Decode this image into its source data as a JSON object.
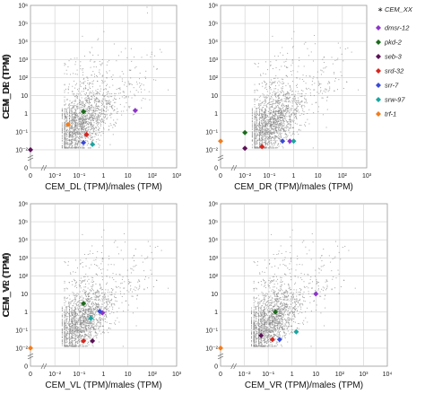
{
  "legend": {
    "placement": "right",
    "background_label": "CEM_XX",
    "background_color": "#888888",
    "entries": [
      {
        "name": "dmsr-12",
        "color": "#8e35c9"
      },
      {
        "name": "pkd-2",
        "color": "#1b6b1b"
      },
      {
        "name": "seb-3",
        "color": "#5c1257"
      },
      {
        "name": "srd-32",
        "color": "#d7261e"
      },
      {
        "name": "srr-7",
        "color": "#3a4bd6"
      },
      {
        "name": "srw-97",
        "color": "#1aa6a2"
      },
      {
        "name": "trf-1",
        "color": "#f07d1e"
      }
    ]
  },
  "chart_data": [
    {
      "type": "scatter",
      "title": "",
      "xlabel": "CEM_DL (TPM)/males (TPM)",
      "ylabel": "CEM_DL (TPM)",
      "xscale": "log",
      "yscale": "log",
      "xlim": [
        0.01,
        1000
      ],
      "ylim": [
        0.01,
        1000000
      ],
      "x_ticks": [
        "0",
        "10⁻²",
        "10⁻¹",
        "1",
        "10",
        "10²",
        "10³"
      ],
      "y_ticks": [
        "0",
        "10⁻²",
        "10⁻¹",
        "1",
        "10",
        "10²",
        "10³",
        "10⁴",
        "10⁵",
        "10⁶"
      ],
      "grid": true,
      "background": {
        "name": "CEM_XX",
        "note": "several thousand grey gene points, densest near x 0.05-1, y 0.05-5"
      },
      "series": [
        {
          "name": "dmsr-12",
          "x": 20,
          "y": 1.5
        },
        {
          "name": "pkd-2",
          "x": 0.15,
          "y": 1.3
        },
        {
          "name": "seb-3",
          "x": 0,
          "y": 0.01
        },
        {
          "name": "srd-32",
          "x": 0.2,
          "y": 0.07
        },
        {
          "name": "srr-7",
          "x": 0.15,
          "y": 0.025
        },
        {
          "name": "srw-97",
          "x": 0.35,
          "y": 0.02
        },
        {
          "name": "trf-1",
          "x": 0.035,
          "y": 0.25
        }
      ]
    },
    {
      "type": "scatter",
      "title": "",
      "xlabel": "CEM_DR (TPM)/males (TPM)",
      "ylabel": "CEM_DR (TPM)",
      "xscale": "log",
      "yscale": "log",
      "xlim": [
        0.01,
        1000
      ],
      "ylim": [
        0.01,
        1000000
      ],
      "x_ticks": [
        "0",
        "10⁻²",
        "10⁻¹",
        "1",
        "10",
        "10²",
        "10³"
      ],
      "y_ticks": [
        "0",
        "10⁻²",
        "10⁻¹",
        "1",
        "10",
        "10²",
        "10³",
        "10⁴",
        "10⁵",
        "10⁶"
      ],
      "grid": true,
      "background": {
        "name": "CEM_XX",
        "note": "several thousand grey gene points, densest near x 0.05-1, y 0.05-5"
      },
      "series": [
        {
          "name": "dmsr-12",
          "x": 0.7,
          "y": 0.03
        },
        {
          "name": "pkd-2",
          "x": 0.01,
          "y": 0.09
        },
        {
          "name": "seb-3",
          "x": 0.01,
          "y": 0.012
        },
        {
          "name": "srd-32",
          "x": 0.05,
          "y": 0.015
        },
        {
          "name": "srr-7",
          "x": 0.35,
          "y": 0.03
        },
        {
          "name": "srw-97",
          "x": 1.0,
          "y": 0.03
        },
        {
          "name": "trf-1",
          "x": 0,
          "y": 0.03
        }
      ]
    },
    {
      "type": "scatter",
      "title": "",
      "xlabel": "CEM_VL (TPM)/males (TPM)",
      "ylabel": "CEM_VL (TPM)",
      "xscale": "log",
      "yscale": "log",
      "xlim": [
        0.01,
        1000
      ],
      "ylim": [
        0.01,
        1000000
      ],
      "x_ticks": [
        "0",
        "10⁻²",
        "10⁻¹",
        "1",
        "10",
        "10²",
        "10³"
      ],
      "y_ticks": [
        "0",
        "10⁻²",
        "10⁻¹",
        "1",
        "10",
        "10²",
        "10³",
        "10⁴",
        "10⁵",
        "10⁶"
      ],
      "grid": true,
      "background": {
        "name": "CEM_XX",
        "note": "several thousand grey gene points, densest near x 0.05-1, y 0.05-5"
      },
      "series": [
        {
          "name": "dmsr-12",
          "x": 0.9,
          "y": 0.9
        },
        {
          "name": "pkd-2",
          "x": 0.15,
          "y": 3
        },
        {
          "name": "seb-3",
          "x": 0.35,
          "y": 0.025
        },
        {
          "name": "srd-32",
          "x": 0.15,
          "y": 0.025
        },
        {
          "name": "srr-7",
          "x": 0.7,
          "y": 1.1
        },
        {
          "name": "srw-97",
          "x": 0.3,
          "y": 0.45
        },
        {
          "name": "trf-1",
          "x": 0,
          "y": 0.01
        }
      ]
    },
    {
      "type": "scatter",
      "title": "",
      "xlabel": "CEM_VR (TPM)/males (TPM)",
      "ylabel": "CEM_VR (TPM)",
      "xscale": "log",
      "yscale": "log",
      "xlim": [
        0.01,
        10000
      ],
      "ylim": [
        0.01,
        1000000
      ],
      "x_ticks": [
        "0",
        "10⁻²",
        "10⁻¹",
        "1",
        "10",
        "10²",
        "10³",
        "10⁴"
      ],
      "y_ticks": [
        "0",
        "10⁻²",
        "10⁻¹",
        "1",
        "10",
        "10²",
        "10³",
        "10⁴",
        "10⁵",
        "10⁶"
      ],
      "grid": true,
      "background": {
        "name": "CEM_XX",
        "note": "several thousand grey gene points, densest near x 0.05-1, y 0.05-5"
      },
      "series": [
        {
          "name": "dmsr-12",
          "x": 10,
          "y": 10
        },
        {
          "name": "pkd-2",
          "x": 0.2,
          "y": 1.0
        },
        {
          "name": "seb-3",
          "x": 0.05,
          "y": 0.05
        },
        {
          "name": "srd-32",
          "x": 0.15,
          "y": 0.03
        },
        {
          "name": "srr-7",
          "x": 0.3,
          "y": 0.03
        },
        {
          "name": "srw-97",
          "x": 1.5,
          "y": 0.08
        },
        {
          "name": "trf-1",
          "x": 0,
          "y": 0.01
        }
      ]
    }
  ]
}
